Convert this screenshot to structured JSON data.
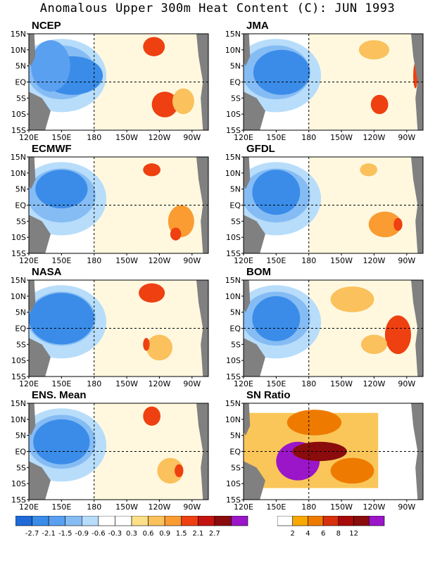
{
  "title": "Anomalous Upper 300m Heat Content (C): JUN 1993",
  "chart_data": {
    "type": "heatmap",
    "panels": [
      {
        "id": "ncep",
        "label": "NCEP",
        "features": [
          {
            "x": 160,
            "y": 2,
            "rx": 28,
            "ry": 6,
            "color": "#3a8ce8"
          },
          {
            "x": 140,
            "y": 5,
            "rx": 18,
            "ry": 8,
            "color": "#5aa0f0"
          },
          {
            "x": 235,
            "y": 11,
            "rx": 10,
            "ry": 3,
            "color": "#ee4010"
          },
          {
            "x": 245,
            "y": -7,
            "rx": 12,
            "ry": 4,
            "color": "#ee4010"
          },
          {
            "x": 262,
            "y": -6,
            "rx": 10,
            "ry": 4,
            "color": "#fac15c"
          }
        ]
      },
      {
        "id": "jma",
        "label": "JMA",
        "features": [
          {
            "x": 155,
            "y": 3,
            "rx": 26,
            "ry": 7,
            "color": "#3a8ce8"
          },
          {
            "x": 240,
            "y": 10,
            "rx": 14,
            "ry": 3,
            "color": "#fac15c"
          },
          {
            "x": 245,
            "y": -7,
            "rx": 8,
            "ry": 3,
            "color": "#ee4010"
          },
          {
            "x": 278,
            "y": 2,
            "rx": 2,
            "ry": 4,
            "color": "#ee4010"
          }
        ]
      },
      {
        "id": "ecmwf",
        "label": "ECMWF",
        "features": [
          {
            "x": 150,
            "y": 5,
            "rx": 24,
            "ry": 6,
            "color": "#3a8ce8"
          },
          {
            "x": 233,
            "y": 11,
            "rx": 8,
            "ry": 2,
            "color": "#ee4010"
          },
          {
            "x": 260,
            "y": -5,
            "rx": 12,
            "ry": 5,
            "color": "#fa9c32"
          },
          {
            "x": 255,
            "y": -9,
            "rx": 5,
            "ry": 2,
            "color": "#ee4010"
          }
        ]
      },
      {
        "id": "gfdl",
        "label": "GFDL",
        "features": [
          {
            "x": 150,
            "y": 4,
            "rx": 22,
            "ry": 7,
            "color": "#3a8ce8"
          },
          {
            "x": 235,
            "y": 11,
            "rx": 8,
            "ry": 2,
            "color": "#fac15c"
          },
          {
            "x": 250,
            "y": -6,
            "rx": 15,
            "ry": 4,
            "color": "#fa9c32"
          },
          {
            "x": 262,
            "y": -6,
            "rx": 4,
            "ry": 2,
            "color": "#ee4010"
          }
        ]
      },
      {
        "id": "nasa",
        "label": "NASA",
        "features": [
          {
            "x": 150,
            "y": 3,
            "rx": 30,
            "ry": 8,
            "color": "#3a8ce8"
          },
          {
            "x": 233,
            "y": 11,
            "rx": 12,
            "ry": 3,
            "color": "#ee4010"
          },
          {
            "x": 240,
            "y": -6,
            "rx": 12,
            "ry": 4,
            "color": "#fac15c"
          },
          {
            "x": 228,
            "y": -5,
            "rx": 3,
            "ry": 2,
            "color": "#ee4010"
          }
        ]
      },
      {
        "id": "bom",
        "label": "BOM",
        "features": [
          {
            "x": 150,
            "y": 3,
            "rx": 22,
            "ry": 7,
            "color": "#3a8ce8"
          },
          {
            "x": 220,
            "y": 9,
            "rx": 20,
            "ry": 4,
            "color": "#fac15c"
          },
          {
            "x": 262,
            "y": -2,
            "rx": 12,
            "ry": 6,
            "color": "#ee4010"
          },
          {
            "x": 240,
            "y": -5,
            "rx": 12,
            "ry": 3,
            "color": "#fac15c"
          }
        ]
      },
      {
        "id": "ens",
        "label": "ENS. Mean",
        "features": [
          {
            "x": 150,
            "y": 3,
            "rx": 26,
            "ry": 7,
            "color": "#3a8ce8"
          },
          {
            "x": 233,
            "y": 11,
            "rx": 8,
            "ry": 3,
            "color": "#ee4010"
          },
          {
            "x": 250,
            "y": -6,
            "rx": 12,
            "ry": 4,
            "color": "#fac15c"
          },
          {
            "x": 258,
            "y": -6,
            "rx": 4,
            "ry": 2,
            "color": "#ee4010"
          }
        ]
      },
      {
        "id": "sn",
        "label": "SN Ratio",
        "features": [
          {
            "x": 170,
            "y": -3,
            "rx": 20,
            "ry": 6,
            "color": "#9a16c8"
          },
          {
            "x": 190,
            "y": 0,
            "rx": 25,
            "ry": 3,
            "color": "#8a0c0c"
          },
          {
            "x": 220,
            "y": -6,
            "rx": 20,
            "ry": 4,
            "color": "#ee7b00"
          },
          {
            "x": 185,
            "y": 9,
            "rx": 25,
            "ry": 4,
            "color": "#ee7b00"
          }
        ]
      }
    ],
    "y_ticks": [
      "15N",
      "10N",
      "5N",
      "EQ",
      "5S",
      "10S",
      "15S"
    ],
    "x_ticks": [
      "120E",
      "150E",
      "180",
      "150W",
      "120W",
      "90W"
    ],
    "xlim": [
      120,
      285
    ],
    "ylim": [
      -15,
      15
    ],
    "colorbar_anomaly": {
      "colors": [
        "#1f6ad8",
        "#3a8ce8",
        "#5aa0f0",
        "#86bcf4",
        "#b7ddfb",
        "#ffffff",
        "#ffffff",
        "#fbe088",
        "#fac15c",
        "#fa9c32",
        "#ee4010",
        "#c41410",
        "#8a0c0c",
        "#9a16c8"
      ],
      "labels": [
        "-2.7",
        "-2.1",
        "-1.5",
        "-0.9",
        "-0.6",
        "-0.3",
        "0.3",
        "0.6",
        "0.9",
        "1.5",
        "2.1",
        "2.7"
      ]
    },
    "colorbar_sn": {
      "colors": [
        "#ffffff",
        "#f8a800",
        "#ee7b00",
        "#d8300a",
        "#a80a0a",
        "#8a0c0c",
        "#9a16c8"
      ],
      "labels": [
        "2",
        "4",
        "6",
        "8",
        "12"
      ]
    }
  }
}
